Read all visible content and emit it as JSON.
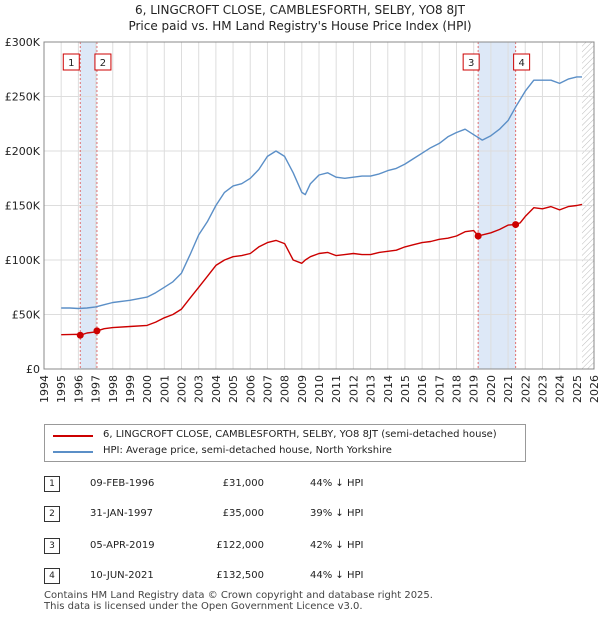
{
  "title_line1": "6, LINGCROFT CLOSE, CAMBLESFORTH, SELBY, YO8 8JT",
  "title_line2": "Price paid vs. HM Land Registry's House Price Index (HPI)",
  "colors": {
    "property": "#cc0000",
    "hpi": "#5b8fc7",
    "shade": "#dde8f7",
    "marker": "#cc0000"
  },
  "legend": {
    "property_label": "6, LINGCROFT CLOSE, CAMBLESFORTH, SELBY, YO8 8JT (semi-detached house)",
    "hpi_label": "HPI: Average price, semi-detached house, North Yorkshire"
  },
  "transactions": [
    {
      "num": "1",
      "date": "09-FEB-1996",
      "price": "£31,000",
      "hpi_diff": "44% ↓ HPI",
      "year": 1996.11,
      "value": 31000
    },
    {
      "num": "2",
      "date": "31-JAN-1997",
      "price": "£35,000",
      "hpi_diff": "39% ↓ HPI",
      "year": 1997.08,
      "value": 35000
    },
    {
      "num": "3",
      "date": "05-APR-2019",
      "price": "£122,000",
      "hpi_diff": "42% ↓ HPI",
      "year": 2019.26,
      "value": 122000
    },
    {
      "num": "4",
      "date": "10-JUN-2021",
      "price": "£132,500",
      "hpi_diff": "44% ↓ HPI",
      "year": 2021.44,
      "value": 132500
    }
  ],
  "footer_line1": "Contains HM Land Registry data © Crown copyright and database right 2025.",
  "footer_line2": "This data is licensed under the Open Government Licence v3.0.",
  "chart_data": {
    "type": "line",
    "title": "Price paid vs. HM Land Registry's House Price Index (HPI)",
    "xlabel": "",
    "ylabel": "",
    "xlim": [
      1994,
      2026
    ],
    "ylim": [
      0,
      300000
    ],
    "x_ticks": [
      1994,
      1995,
      1996,
      1997,
      1998,
      1999,
      2000,
      2001,
      2002,
      2003,
      2004,
      2005,
      2006,
      2007,
      2008,
      2009,
      2010,
      2011,
      2012,
      2013,
      2014,
      2015,
      2016,
      2017,
      2018,
      2019,
      2020,
      2021,
      2022,
      2023,
      2024,
      2025,
      2026
    ],
    "y_ticks": [
      0,
      50000,
      100000,
      150000,
      200000,
      250000,
      300000
    ],
    "y_tick_labels": [
      "£0",
      "£50K",
      "£100K",
      "£150K",
      "£200K",
      "£250K",
      "£300K"
    ],
    "shaded_ranges": [
      [
        1996.11,
        1997.08
      ],
      [
        2019.26,
        2021.44
      ]
    ],
    "data_end_year": 2025.3,
    "series": [
      {
        "name": "6, LINGCROFT CLOSE, CAMBLESFORTH, SELBY, YO8 8JT (semi-detached house)",
        "x": [
          1995.0,
          1996.0,
          1996.11,
          1996.5,
          1997.0,
          1997.08,
          1997.5,
          1998,
          1999,
          2000,
          2000.5,
          2001,
          2001.5,
          2002,
          2002.5,
          2003,
          2003.5,
          2004,
          2004.5,
          2005,
          2005.5,
          2006,
          2006.5,
          2007,
          2007.5,
          2008,
          2008.5,
          2009,
          2009.2,
          2009.5,
          2010,
          2010.5,
          2011,
          2011.5,
          2012,
          2012.5,
          2013,
          2013.5,
          2014,
          2014.5,
          2015,
          2015.5,
          2016,
          2016.5,
          2017,
          2017.5,
          2018,
          2018.5,
          2019.0,
          2019.26,
          2019.5,
          2020,
          2020.5,
          2021.0,
          2021.44,
          2021.7,
          2022,
          2022.5,
          2023,
          2023.5,
          2024,
          2024.5,
          2025,
          2025.3
        ],
        "values": [
          31500,
          31800,
          31000,
          33000,
          34000,
          35000,
          37000,
          38000,
          39000,
          40000,
          43000,
          47000,
          50000,
          55000,
          65000,
          75000,
          85000,
          95000,
          100000,
          103000,
          104000,
          106000,
          112000,
          116000,
          118000,
          115000,
          100000,
          97000,
          100000,
          103000,
          106000,
          107000,
          104000,
          105000,
          106000,
          105000,
          105000,
          107000,
          108000,
          109000,
          112000,
          114000,
          116000,
          117000,
          119000,
          120000,
          122000,
          126000,
          127000,
          122000,
          123000,
          125000,
          128000,
          132000,
          132500,
          134000,
          140000,
          148000,
          147000,
          149000,
          146000,
          149000,
          150000,
          151000
        ]
      },
      {
        "name": "HPI: Average price, semi-detached house, North Yorkshire",
        "x": [
          1995.0,
          1995.5,
          1996.0,
          1996.5,
          1997.0,
          1997.5,
          1998,
          1999,
          2000,
          2000.5,
          2001,
          2001.5,
          2002,
          2002.5,
          2003,
          2003.5,
          2004,
          2004.5,
          2005,
          2005.5,
          2006,
          2006.5,
          2007,
          2007.5,
          2008,
          2008.5,
          2009,
          2009.2,
          2009.5,
          2010,
          2010.5,
          2011,
          2011.5,
          2012,
          2012.5,
          2013,
          2013.5,
          2014,
          2014.5,
          2015,
          2015.5,
          2016,
          2016.5,
          2017,
          2017.5,
          2018,
          2018.5,
          2019.0,
          2019.5,
          2020,
          2020.5,
          2021.0,
          2021.5,
          2022,
          2022.5,
          2023,
          2023.5,
          2024,
          2024.5,
          2025,
          2025.3
        ],
        "values": [
          56000,
          56000,
          55500,
          56000,
          57000,
          59000,
          61000,
          63000,
          66000,
          70000,
          75000,
          80000,
          88000,
          105000,
          123000,
          135000,
          150000,
          162000,
          168000,
          170000,
          175000,
          183000,
          195000,
          200000,
          195000,
          180000,
          162000,
          160000,
          170000,
          178000,
          180000,
          176000,
          175000,
          176000,
          177000,
          177000,
          179000,
          182000,
          184000,
          188000,
          193000,
          198000,
          203000,
          207000,
          213000,
          217000,
          220000,
          215000,
          210000,
          214000,
          220000,
          228000,
          242000,
          255000,
          265000,
          265000,
          265000,
          262000,
          266000,
          268000,
          268000
        ]
      }
    ]
  }
}
